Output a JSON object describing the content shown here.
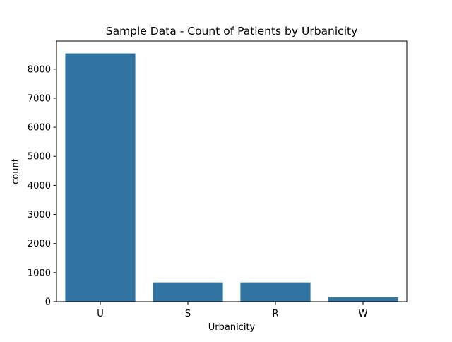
{
  "chart_data": {
    "type": "bar",
    "title": "Sample Data - Count of Patients by Urbanicity",
    "xlabel": "Urbanicity",
    "ylabel": "count",
    "categories": [
      "U",
      "S",
      "R",
      "W"
    ],
    "values": [
      8540,
      665,
      665,
      145
    ],
    "ylim": [
      0,
      8967
    ],
    "yticks": [
      0,
      1000,
      2000,
      3000,
      4000,
      5000,
      6000,
      7000,
      8000
    ],
    "grid": false,
    "legend": "none",
    "bar_color": "#3274a1"
  }
}
